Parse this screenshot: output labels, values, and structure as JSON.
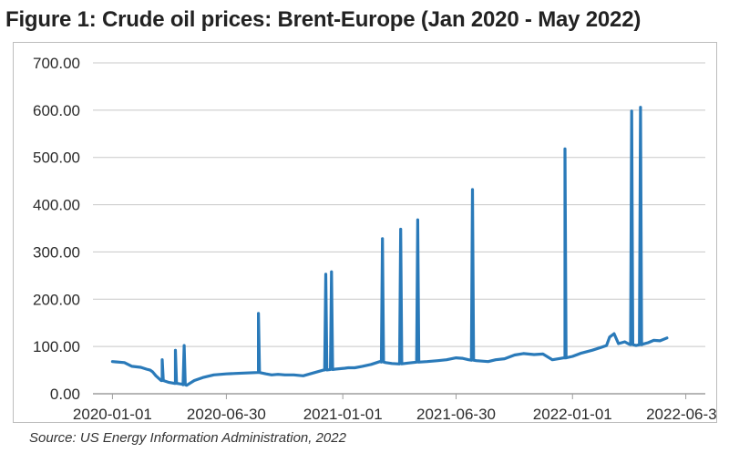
{
  "figure": {
    "title": "Figure 1: Crude oil prices: Brent-Europe (Jan 2020 - May 2022)",
    "source": "Source: US Energy Information Administration, 2022"
  },
  "chart_data": {
    "type": "line",
    "title": "",
    "xlabel": "",
    "ylabel": "",
    "ylim": [
      0,
      700
    ],
    "yticks": [
      "0.00",
      "100.00",
      "200.00",
      "300.00",
      "400.00",
      "500.00",
      "600.00",
      "700.00"
    ],
    "x_axis": {
      "type": "date",
      "range": [
        "2019-12-01",
        "2022-07-31"
      ],
      "ticks": [
        "2020-01-01",
        "2020-06-30",
        "2021-01-01",
        "2021-06-30",
        "2022-01-01",
        "2022-06-30"
      ]
    },
    "grid": "horizontal",
    "legend": "none",
    "line_color": "#2a7ab9",
    "series": [
      {
        "x": [
          "2020-01-01",
          "2020-01-20",
          "2020-02-01",
          "2020-02-15",
          "2020-02-24",
          "2020-03-01",
          "2020-03-05",
          "2020-03-10",
          "2020-03-20",
          "2020-03-31",
          "2020-04-10",
          "2020-04-21",
          "2020-04-28",
          "2020-05-10",
          "2020-05-25",
          "2020-06-10",
          "2020-06-30",
          "2020-07-15",
          "2020-08-01",
          "2020-08-20",
          "2020-09-01",
          "2020-09-10",
          "2020-09-20",
          "2020-10-01",
          "2020-10-15",
          "2020-10-30",
          "2020-11-15",
          "2020-12-01",
          "2020-12-20",
          "2021-01-04",
          "2021-01-10",
          "2021-01-20",
          "2021-02-01",
          "2021-02-15",
          "2021-03-01",
          "2021-03-10",
          "2021-03-20",
          "2021-04-01",
          "2021-04-15",
          "2021-05-01",
          "2021-05-15",
          "2021-06-01",
          "2021-06-15",
          "2021-06-30",
          "2021-07-10",
          "2021-07-20",
          "2021-08-01",
          "2021-08-20",
          "2021-09-01",
          "2021-09-15",
          "2021-10-01",
          "2021-10-15",
          "2021-11-01",
          "2021-11-15",
          "2021-11-30",
          "2021-12-10",
          "2021-12-20",
          "2022-01-01",
          "2022-01-15",
          "2022-02-01",
          "2022-02-15",
          "2022-02-24",
          "2022-03-01",
          "2022-03-08",
          "2022-03-15",
          "2022-03-25",
          "2022-04-01",
          "2022-04-12",
          "2022-04-20",
          "2022-05-01",
          "2022-05-10",
          "2022-05-20",
          "2022-05-31"
        ],
        "y": [
          68,
          66,
          58,
          56,
          52,
          50,
          46,
          38,
          28,
          24,
          22,
          20,
          18,
          28,
          35,
          40,
          42,
          43,
          44,
          45,
          42,
          40,
          41,
          40,
          40,
          38,
          44,
          50,
          52,
          54,
          55,
          55,
          58,
          62,
          68,
          66,
          64,
          63,
          65,
          67,
          68,
          70,
          72,
          76,
          75,
          72,
          70,
          68,
          72,
          74,
          82,
          85,
          83,
          84,
          72,
          74,
          76,
          79,
          86,
          92,
          98,
          102,
          120,
          127,
          106,
          110,
          105,
          102,
          104,
          108,
          113,
          112,
          118
        ]
      }
    ],
    "spikes": [
      {
        "x": "2020-03-20",
        "y": 72
      },
      {
        "x": "2020-04-10",
        "y": 92
      },
      {
        "x": "2020-04-24",
        "y": 102
      },
      {
        "x": "2020-08-20",
        "y": 170
      },
      {
        "x": "2020-12-05",
        "y": 253
      },
      {
        "x": "2020-12-14",
        "y": 258
      },
      {
        "x": "2021-03-05",
        "y": 328
      },
      {
        "x": "2021-04-03",
        "y": 348
      },
      {
        "x": "2021-04-30",
        "y": 368
      },
      {
        "x": "2021-07-26",
        "y": 432
      },
      {
        "x": "2021-12-20",
        "y": 518
      },
      {
        "x": "2022-04-05",
        "y": 598
      },
      {
        "x": "2022-04-19",
        "y": 606
      }
    ]
  }
}
